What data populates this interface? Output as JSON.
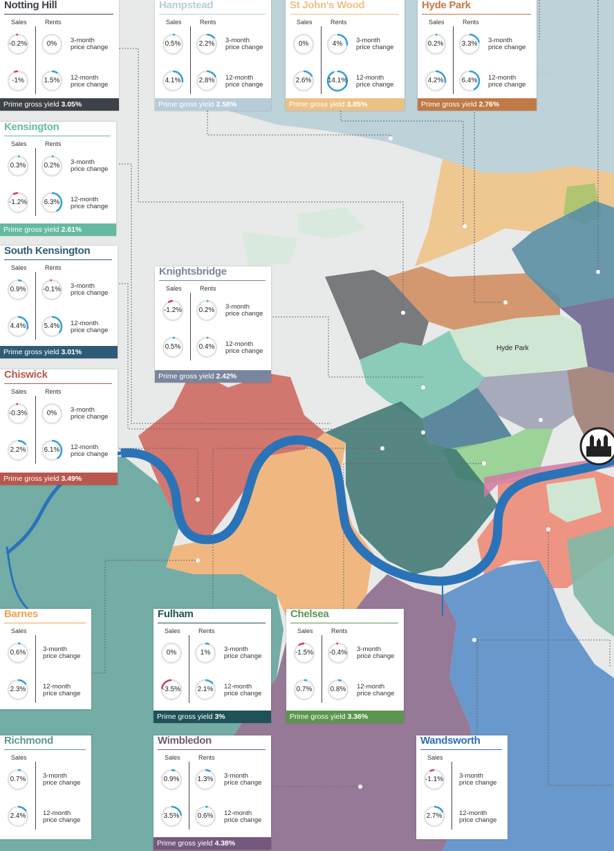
{
  "map": {
    "park_label": "Hyde Park"
  },
  "labels": {
    "sales": "Sales",
    "rents": "Rents",
    "m3": [
      "3-month",
      "price change"
    ],
    "m12": [
      "12-month",
      "price change"
    ],
    "yield_prefix": "Prime gross yield"
  },
  "areas": [
    {
      "id": "notting-hill",
      "name": "Notting Hill",
      "color": "#3d4148",
      "sales3": "-0.2%",
      "rents3": "0%",
      "sales12": "-1%",
      "rents12": "1.5%",
      "yield": "3.05%"
    },
    {
      "id": "hampstead",
      "name": "Hampstead",
      "color": "#b6cdd9",
      "sales3": "0.5%",
      "rents3": "2.2%",
      "sales12": "4.1%",
      "rents12": "2.8%",
      "yield": "2.58%"
    },
    {
      "id": "st-johns-wood",
      "name": "St John's Wood",
      "color": "#ecc186",
      "sales3": "0%",
      "rents3": "4%",
      "sales12": "2.6%",
      "rents12": "14.1%",
      "yield": "3.85%"
    },
    {
      "id": "hyde-park",
      "name": "Hyde Park",
      "color": "#c07a46",
      "sales3": "0.2%",
      "rents3": "3.3%",
      "sales12": "4.2%",
      "rents12": "6.4%",
      "yield": "2.76%"
    },
    {
      "id": "kensington",
      "name": "Kensington",
      "color": "#64b9a2",
      "sales3": "0.3%",
      "rents3": "0.2%",
      "sales12": "-1.2%",
      "rents12": "6.3%",
      "yield": "2.61%"
    },
    {
      "id": "south-kensington",
      "name": "South Kensington",
      "color": "#2e5c74",
      "sales3": "0.9%",
      "rents3": "-0.1%",
      "sales12": "4.4%",
      "rents12": "5.4%",
      "yield": "3.01%"
    },
    {
      "id": "knightsbridge",
      "name": "Knightsbridge",
      "color": "#7a869d",
      "sales3": "-1.2%",
      "rents3": "0.2%",
      "sales12": "0.5%",
      "rents12": "0.4%",
      "yield": "2.42%"
    },
    {
      "id": "chiswick",
      "name": "Chiswick",
      "color": "#b9574d",
      "sales3": "-0.3%",
      "rents3": "0%",
      "sales12": "2.2%",
      "rents12": "6.1%",
      "yield": "3.49%"
    },
    {
      "id": "barnes",
      "name": "Barnes",
      "color": "#f0a351",
      "sales3": "0.6%",
      "sales12": "2.3%"
    },
    {
      "id": "fulham",
      "name": "Fulham",
      "color": "#1e5158",
      "sales3": "0%",
      "rents3": "1%",
      "sales12": "-3.5%",
      "rents12": "2.1%",
      "yield": "3%"
    },
    {
      "id": "chelsea",
      "name": "Chelsea",
      "color": "#5b964e",
      "sales3": "-1.5%",
      "rents3": "-0.4%",
      "sales12": "0.7%",
      "rents12": "0.8%",
      "yield": "3.36%"
    },
    {
      "id": "richmond",
      "name": "Richmond",
      "color": "#5a9a90",
      "sales3": "0.7%",
      "sales12": "2.4%"
    },
    {
      "id": "wimbledon",
      "name": "Wimbledon",
      "color": "#76587f",
      "sales3": "0.9%",
      "rents3": "1.3%",
      "sales12": "3.5%",
      "rents12": "0.6%",
      "yield": "4.38%"
    },
    {
      "id": "wandsworth",
      "name": "Wandsworth",
      "color": "#2e6eb1",
      "sales3": "-1.1%",
      "sales12": "2.7%"
    }
  ]
}
